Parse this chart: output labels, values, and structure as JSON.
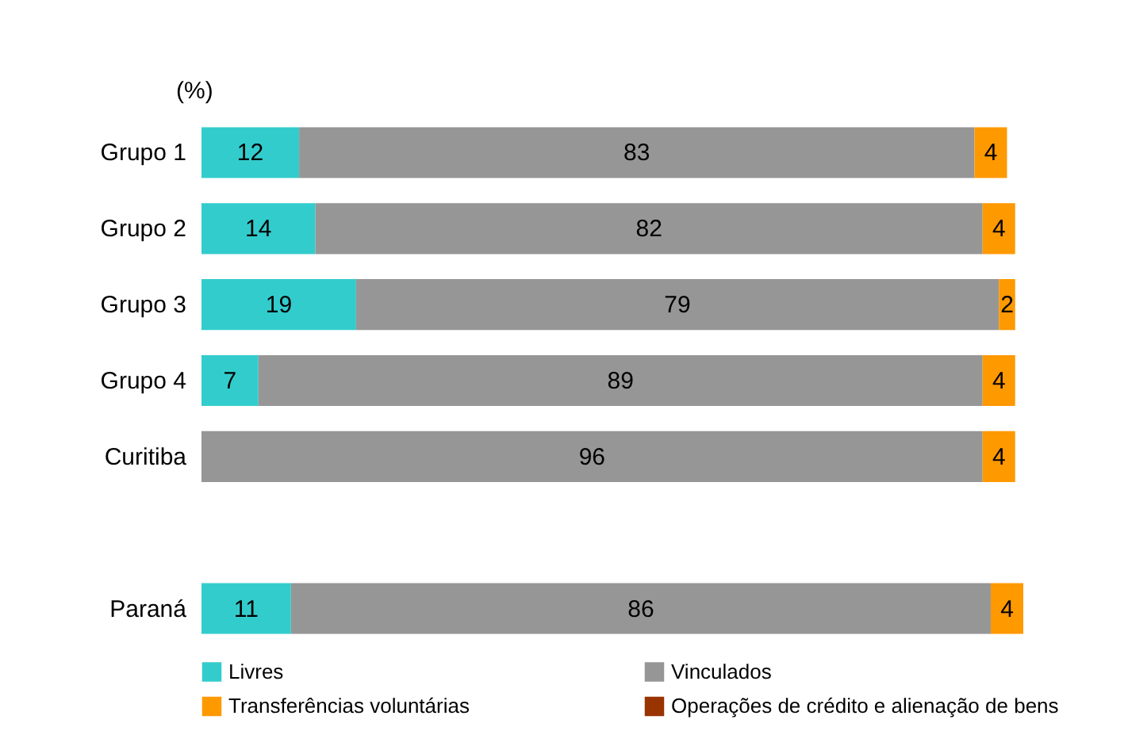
{
  "chart_data": {
    "type": "bar",
    "orientation": "horizontal",
    "stacked": true,
    "data_labels": true,
    "legend": "bottom",
    "annotations": [
      "(%)"
    ],
    "categories": [
      "Grupo 1",
      "Grupo 2",
      "Grupo 3",
      "Grupo 4",
      "Curitiba",
      null,
      "Paraná"
    ],
    "series": [
      {
        "name": "Livres",
        "color": "#33cccc",
        "values": [
          12,
          14,
          19,
          7,
          null,
          null,
          11
        ]
      },
      {
        "name": "Vinculados",
        "color": "#969696",
        "values": [
          83,
          82,
          79,
          89,
          96,
          null,
          86
        ]
      },
      {
        "name": "Transferências voluntárias",
        "color": "#ff9900",
        "values": [
          4,
          4,
          2,
          4,
          4,
          null,
          4
        ]
      },
      {
        "name": "Operações de crédito e alienação de bens",
        "color": "#993300",
        "values": [
          null,
          null,
          null,
          null,
          null,
          null,
          null
        ]
      }
    ]
  }
}
